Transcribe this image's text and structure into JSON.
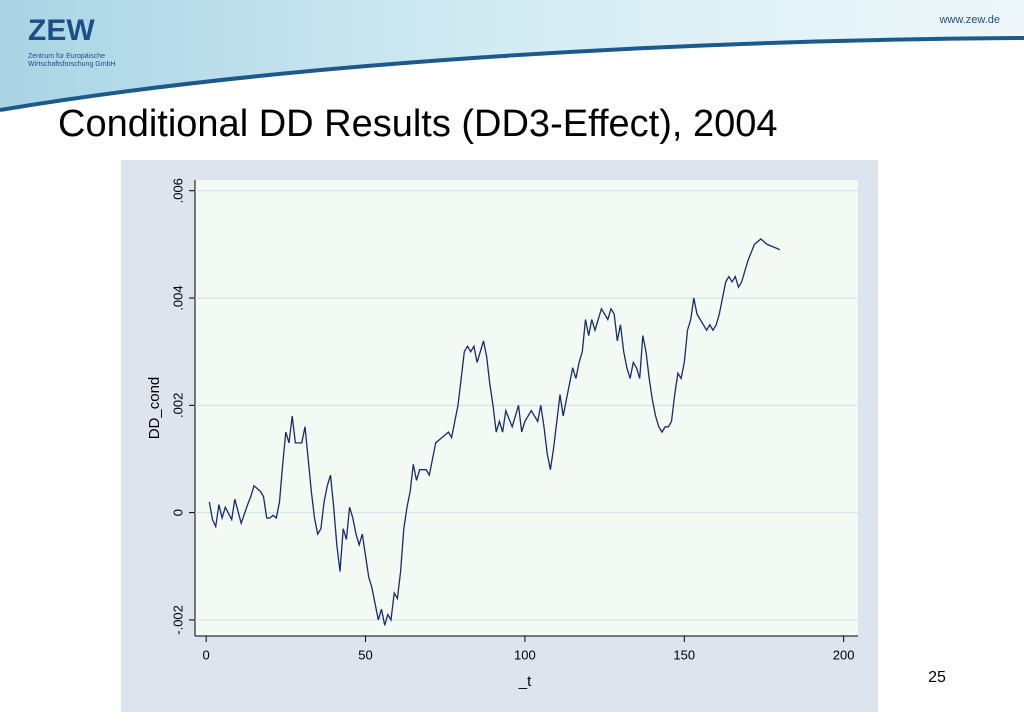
{
  "header": {
    "logo": "ZEW",
    "logo_line1": "Zentrum für Europäische",
    "logo_line2": "Wirtschaftsforschung GmbH",
    "url": "www.zew.de"
  },
  "page_number": "25",
  "chart_data": {
    "type": "line",
    "title": "Conditional DD Results (DD3-Effect), 2004",
    "xlabel": "_t",
    "ylabel": "DD_cond",
    "xlim": [
      -3.5,
      204.5
    ],
    "ylim": [
      -0.0023,
      0.0062
    ],
    "xticks": [
      0,
      50,
      100,
      150,
      200
    ],
    "yticks": [
      {
        "value": -0.002,
        "label": "-.002"
      },
      0,
      {
        "value": 0.002,
        "label": ".002"
      },
      {
        "value": 0.004,
        "label": ".004"
      },
      {
        "value": 0.006,
        "label": ".006"
      }
    ],
    "grid": true,
    "series": [
      {
        "name": "DD_cond",
        "color": "#1a2a6c",
        "x": [
          1,
          2,
          3,
          4,
          5,
          6,
          8,
          9,
          11,
          13,
          14,
          15,
          17,
          18,
          19,
          20,
          21,
          22,
          23,
          24,
          25,
          26,
          27,
          28,
          30,
          31,
          32,
          33,
          34,
          35,
          36,
          37,
          38,
          39,
          40,
          41,
          42,
          43,
          44,
          45,
          46,
          47,
          48,
          49,
          50,
          51,
          52,
          53,
          54,
          55,
          56,
          57,
          58,
          59,
          60,
          61,
          62,
          63,
          64,
          65,
          66,
          67,
          69,
          70,
          71,
          72,
          74,
          76,
          77,
          78,
          79,
          80,
          81,
          82,
          83,
          84,
          85,
          86,
          87,
          88,
          89,
          90,
          91,
          92,
          93,
          94,
          96,
          98,
          99,
          100,
          102,
          104,
          105,
          106,
          107,
          108,
          109,
          110,
          111,
          112,
          113,
          114,
          115,
          116,
          117,
          118,
          119,
          120,
          121,
          122,
          124,
          126,
          127,
          128,
          129,
          130,
          131,
          132,
          133,
          134,
          135,
          136,
          137,
          138,
          139,
          140,
          141,
          142,
          143,
          144,
          145,
          146,
          147,
          148,
          149,
          150,
          151,
          152,
          153,
          154,
          155,
          156,
          157,
          158,
          159,
          160,
          161,
          162,
          163,
          164,
          165,
          166,
          167,
          168,
          169,
          170,
          172,
          174,
          176,
          180
        ],
        "values": [
          0.0002,
          -0.00013,
          -0.00026,
          0.00015,
          -0.0001,
          0.0001,
          -0.00013,
          0.00025,
          -0.0002,
          0.00015,
          0.0003,
          0.0005,
          0.0004,
          0.0003,
          -0.0001,
          -0.0001,
          -5e-05,
          -0.0001,
          0.0002,
          0.0009,
          0.0015,
          0.0013,
          0.0018,
          0.0013,
          0.0013,
          0.0016,
          0.001,
          0.0004,
          -0.0001,
          -0.0004,
          -0.0003,
          0.0002,
          0.0005,
          0.0007,
          0.0001,
          -0.0006,
          -0.0011,
          -0.0003,
          -0.0005,
          0.0001,
          -0.0001,
          -0.0004,
          -0.0006,
          -0.0004,
          -0.0008,
          -0.0012,
          -0.0014,
          -0.0017,
          -0.002,
          -0.0018,
          -0.0021,
          -0.0019,
          -0.002,
          -0.0015,
          -0.0016,
          -0.0011,
          -0.0003,
          0.0001,
          0.0004,
          0.0009,
          0.0006,
          0.0008,
          0.0008,
          0.0007,
          0.001,
          0.0013,
          0.0014,
          0.0015,
          0.0014,
          0.0017,
          0.002,
          0.0025,
          0.003,
          0.0031,
          0.003,
          0.0031,
          0.0028,
          0.003,
          0.0032,
          0.0029,
          0.0024,
          0.002,
          0.0015,
          0.0017,
          0.0015,
          0.0019,
          0.0016,
          0.002,
          0.0015,
          0.0017,
          0.0019,
          0.0017,
          0.002,
          0.0016,
          0.0011,
          0.0008,
          0.0012,
          0.0017,
          0.0022,
          0.0018,
          0.0021,
          0.0024,
          0.0027,
          0.0025,
          0.0028,
          0.003,
          0.0036,
          0.0033,
          0.0036,
          0.0034,
          0.0038,
          0.0036,
          0.0038,
          0.0037,
          0.0032,
          0.0035,
          0.003,
          0.0027,
          0.0025,
          0.0028,
          0.0027,
          0.0025,
          0.0033,
          0.003,
          0.0025,
          0.0021,
          0.0018,
          0.0016,
          0.0015,
          0.0016,
          0.0016,
          0.0017,
          0.0022,
          0.0026,
          0.0025,
          0.0028,
          0.0034,
          0.0036,
          0.004,
          0.0037,
          0.0036,
          0.0035,
          0.0034,
          0.0035,
          0.0034,
          0.0035,
          0.0037,
          0.004,
          0.0043,
          0.0044,
          0.0043,
          0.0044,
          0.0042,
          0.0043,
          0.0045,
          0.0047,
          0.005,
          0.0051,
          0.005,
          0.0049
        ]
      }
    ]
  }
}
